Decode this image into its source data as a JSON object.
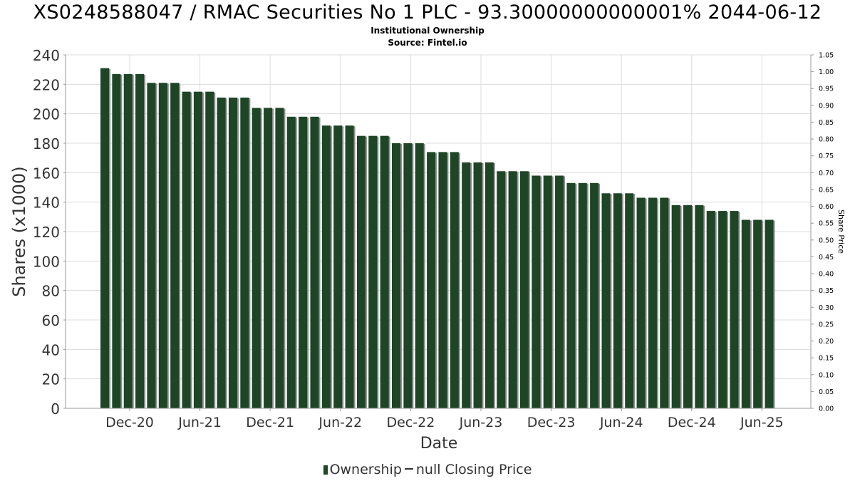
{
  "chart_data": {
    "type": "bar",
    "title": "XS0248588047 / RMAC Securities No 1 PLC - 93.30000000000001% 2044-06-12",
    "subtitle": "Institutional Ownership",
    "source": "Source: Fintel.io",
    "xlabel": "Date",
    "ylabel": "Shares (x1000)",
    "y2label": "Share Price",
    "ylim": [
      0,
      240
    ],
    "y_ticks": [
      0,
      20,
      40,
      60,
      80,
      100,
      120,
      140,
      160,
      180,
      200,
      220,
      240
    ],
    "y2lim": [
      0,
      1.05
    ],
    "y2_ticks": [
      "0.00",
      "0.05",
      "0.10",
      "0.15",
      "0.20",
      "0.25",
      "0.30",
      "0.35",
      "0.40",
      "0.45",
      "0.50",
      "0.55",
      "0.60",
      "0.65",
      "0.70",
      "0.75",
      "0.80",
      "0.85",
      "0.90",
      "0.95",
      "1.00",
      "1.05"
    ],
    "x_ticks": [
      "Dec-20",
      "Jun-21",
      "Dec-21",
      "Jun-22",
      "Dec-22",
      "Jun-23",
      "Dec-23",
      "Jun-24",
      "Dec-24",
      "Jun-25"
    ],
    "grid": true,
    "legend_position": "bottom",
    "series": [
      {
        "name": "Ownership",
        "color": "#1d4526",
        "values": [
          231,
          227,
          227,
          227,
          221,
          221,
          221,
          215,
          215,
          215,
          211,
          211,
          211,
          204,
          204,
          204,
          198,
          198,
          198,
          192,
          192,
          192,
          185,
          185,
          185,
          180,
          180,
          180,
          174,
          174,
          174,
          167,
          167,
          167,
          161,
          161,
          161,
          158,
          158,
          158,
          153,
          153,
          153,
          146,
          146,
          146,
          143,
          143,
          143,
          138,
          138,
          138,
          134,
          134,
          134,
          128,
          128,
          128
        ]
      },
      {
        "name": "null Closing Price",
        "color": "#333333",
        "values": []
      }
    ]
  }
}
